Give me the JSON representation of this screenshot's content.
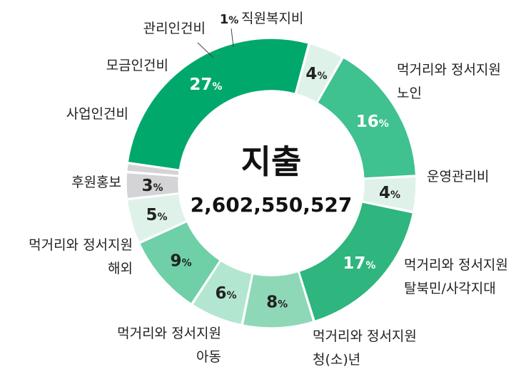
{
  "chart_data": {
    "type": "pie",
    "variant": "donut",
    "center_title": "지출",
    "center_total": "2,602,550,527",
    "percent_sign": "%",
    "segments": [
      {
        "label": [
          "먹거리와 정서지원",
          "노인"
        ],
        "percent": 27,
        "value": 27,
        "color": "#00a86b",
        "text_color": "#ffffff"
      },
      {
        "label": [
          "운영관리비"
        ],
        "percent": 4,
        "value": 4,
        "color": "#dff2ea",
        "text_color": "#222222"
      },
      {
        "label": [
          "먹거리와 정서지원",
          "탈북민/사각지대"
        ],
        "percent": 16,
        "value": 16,
        "color": "#3fc190",
        "text_color": "#ffffff"
      },
      {
        "label": [
          "먹거리와 정서지원",
          "청(소)년"
        ],
        "percent": 4,
        "value": 4,
        "color": "#dff2ea",
        "text_color": "#222222"
      },
      {
        "label": [
          "먹거리와 정서지원",
          "아동"
        ],
        "percent": 17,
        "value": 17,
        "color": "#2fb57e",
        "text_color": "#ffffff"
      },
      {
        "label": [
          "먹거리와 정서지원",
          "해외"
        ],
        "percent": 8,
        "value": 8,
        "color": "#8ed8b8",
        "text_color": "#222222"
      },
      {
        "label": [
          "후원홍보"
        ],
        "percent": 6,
        "value": 6,
        "color": "#b2e6d0",
        "text_color": "#222222"
      },
      {
        "label": [
          "사업인건비"
        ],
        "percent": 9,
        "value": 9,
        "color": "#6fcfa6",
        "text_color": "#222222"
      },
      {
        "label": [
          "모금인건비"
        ],
        "percent": 5,
        "value": 5,
        "color": "#dff2ea",
        "text_color": "#222222"
      },
      {
        "label": [
          "관리인건비"
        ],
        "percent": 3,
        "value": 3,
        "color": "#d4d4d6",
        "text_color": "#222222"
      },
      {
        "label": [
          "직원복지비"
        ],
        "percent": 1,
        "value": 1,
        "color": "#d4d4d6",
        "text_color": "#222222"
      }
    ],
    "legend": "none"
  }
}
